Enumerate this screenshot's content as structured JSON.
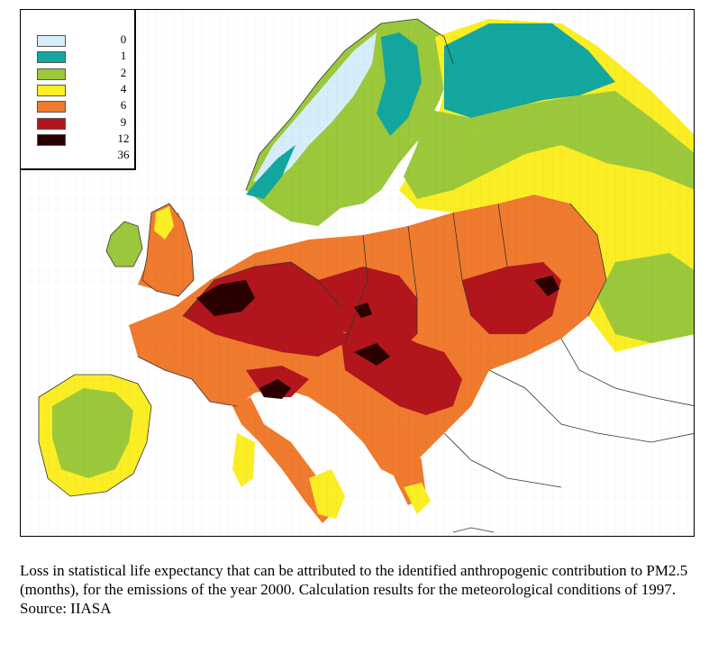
{
  "legend": {
    "items": [
      {
        "label": "0",
        "color": "#d6eefa"
      },
      {
        "label": "1",
        "color": "#13a7a0"
      },
      {
        "label": "2",
        "color": "#9cc83c"
      },
      {
        "label": "4",
        "color": "#fbee24"
      },
      {
        "label": "6",
        "color": "#f07a2e"
      },
      {
        "label": "9",
        "color": "#b2161c"
      },
      {
        "label": "12",
        "color": "#2b0000"
      },
      {
        "label": "36",
        "color": ""
      }
    ]
  },
  "caption": {
    "text": "Loss in statistical life expectancy that can be attributed to the identified anthropogenic contribution to PM2.5 (months), for the emissions of the year 2000. Calculation results for the meteorological conditions of 1997.",
    "source": "Source: IIASA"
  },
  "colors": {
    "border": "#333333",
    "background": "#ffffff"
  }
}
